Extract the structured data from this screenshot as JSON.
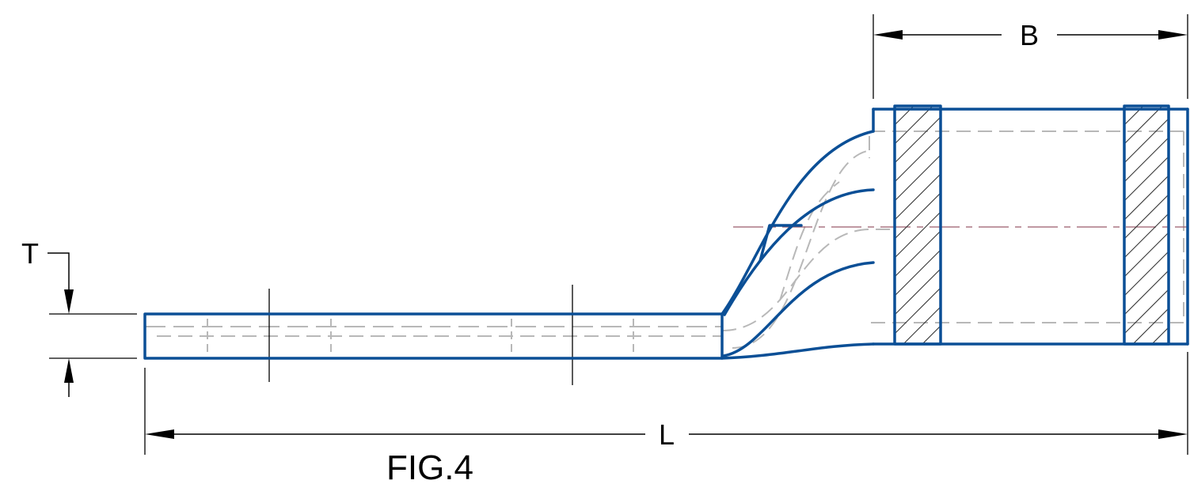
{
  "figure": {
    "caption": "FIG.4"
  },
  "dimensions": {
    "overall_length": "L",
    "barrel_length": "B",
    "tongue_thickness": "T"
  },
  "colors": {
    "outline": "#0b4f96",
    "hidden_lines": "#b8b8b8",
    "center_line": "#9a5a6a",
    "dimension_lines": "#000000"
  }
}
